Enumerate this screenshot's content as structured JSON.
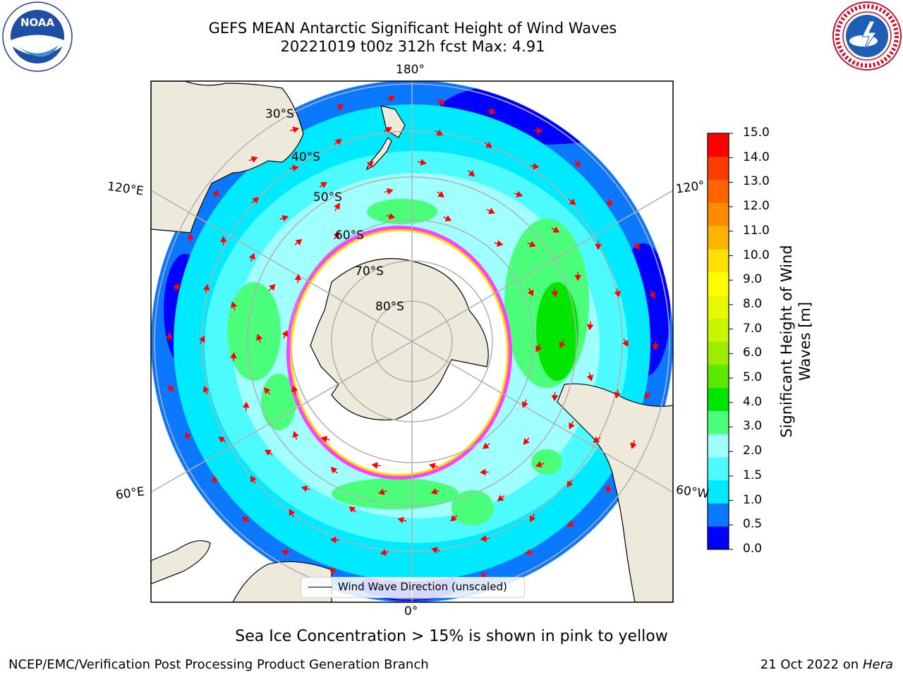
{
  "title": {
    "line1": "GEFS MEAN Antarctic Significant Height of Wind Waves",
    "line2": "20221019 t00z 312h fcst   Max: 4.91"
  },
  "logos": {
    "left": "NOAA",
    "left_ring": "NATIONAL OCEANIC AND ATMOSPHERIC ADMINISTRATION · U.S. DEPARTMENT OF COMMERCE",
    "right_ring": "NATIONAL WEATHER SERVICE"
  },
  "map": {
    "lon_labels": {
      "top": "180°",
      "bottom": "0°",
      "upper_left": "120°E",
      "upper_right": "120°",
      "lower_left": "60°E",
      "lower_right": "60°W"
    },
    "lat_labels": [
      "30°S",
      "40°S",
      "50°S",
      "60°S",
      "70°S",
      "80°S"
    ],
    "legend": "Wind Wave Direction (unscaled)",
    "colors": {
      "land": "#eeeadb",
      "ice": "#ffffff",
      "arrow": "#ff0000",
      "grid": "#b0b0b0"
    }
  },
  "colorbar": {
    "title_line1": "Significant Height of Wind",
    "title_line2": "Waves [m]",
    "ticks": [
      "15.0",
      "14.0",
      "13.0",
      "12.0",
      "11.0",
      "10.0",
      "9.0",
      "8.0",
      "7.0",
      "6.0",
      "5.0",
      "4.0",
      "3.0",
      "2.0",
      "1.5",
      "1.0",
      "0.5",
      "0.0"
    ],
    "colors_bottom_to_top": [
      "#0000ff",
      "#0a78ff",
      "#00eaff",
      "#4dfbff",
      "#a0ffff",
      "#4cff7a",
      "#00e600",
      "#5de800",
      "#9eed00",
      "#c8f500",
      "#e6f900",
      "#ffff00",
      "#ffe000",
      "#ffb400",
      "#ff8c00",
      "#ff6400",
      "#ff3c00",
      "#ff0000"
    ]
  },
  "caption": "Sea Ice Concentration > 15% is shown in pink to yellow",
  "footer": {
    "left": "NCEP/EMC/Verification Post Processing Product Generation Branch",
    "right_date": "21 Oct 2022 on ",
    "right_host": "Hera"
  }
}
